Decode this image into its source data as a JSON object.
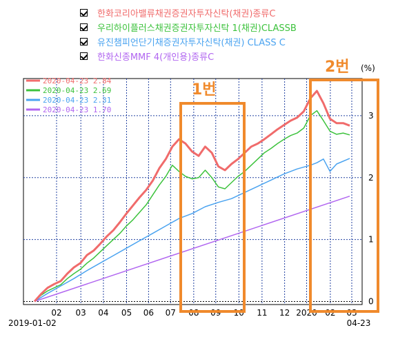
{
  "funds": [
    {
      "label": "한화코리아밸류채권증권자투자신탁(채권)종류C",
      "color": "#f06b6b"
    },
    {
      "label": "우리하이플러스채권증권자투자신탁 1(채권)CLASSB",
      "color": "#3cc23c"
    },
    {
      "label": "유진챔피언단기채증권자투자신탁(채권) CLASS C",
      "color": "#4aa3f0"
    },
    {
      "label": "한화신종MMF 4(개인용)종류C",
      "color": "#b166f0"
    }
  ],
  "chart_data": {
    "type": "line",
    "ylabel": "(%)",
    "ylim": [
      -0.05,
      3.6
    ],
    "x_start_label": "2019-01-02",
    "x_end_label": "04-23",
    "x_ticks": [
      "02",
      "03",
      "04",
      "05",
      "06",
      "07",
      "08",
      "09",
      "10",
      "11",
      "12",
      "2020",
      "02",
      "03",
      "04"
    ],
    "y_ticks": [
      "0",
      "1",
      "2",
      "3"
    ],
    "legend_location": "top-left",
    "series": [
      {
        "legend": "2020-04-23 2.84",
        "color": "#f06b6b",
        "final": 2.84,
        "x": [
          0,
          10,
          20,
          30,
          40,
          50,
          60,
          70,
          80,
          90,
          100,
          110,
          120,
          130,
          140,
          150,
          160,
          170,
          180,
          190,
          200,
          210,
          220,
          230,
          240,
          250,
          260,
          270,
          280,
          290,
          300,
          310,
          320,
          330,
          340,
          350,
          360,
          370,
          380,
          390,
          400,
          410,
          420,
          430,
          440,
          450,
          460,
          470,
          480
        ],
        "y": [
          0.0,
          0.12,
          0.22,
          0.28,
          0.33,
          0.45,
          0.55,
          0.62,
          0.75,
          0.82,
          0.93,
          1.05,
          1.15,
          1.28,
          1.42,
          1.55,
          1.68,
          1.8,
          1.95,
          2.15,
          2.3,
          2.5,
          2.62,
          2.55,
          2.42,
          2.35,
          2.5,
          2.4,
          2.18,
          2.12,
          2.22,
          2.3,
          2.4,
          2.5,
          2.55,
          2.62,
          2.7,
          2.78,
          2.85,
          2.92,
          2.97,
          3.07,
          3.28,
          3.4,
          3.2,
          2.95,
          2.88,
          2.88,
          2.84
        ]
      },
      {
        "legend": "2020-04-23 2.69",
        "color": "#3cc23c",
        "final": 2.69,
        "x": [
          0,
          10,
          20,
          30,
          40,
          50,
          60,
          70,
          80,
          90,
          100,
          110,
          120,
          130,
          140,
          150,
          160,
          170,
          180,
          190,
          200,
          210,
          220,
          230,
          240,
          250,
          260,
          270,
          280,
          290,
          300,
          310,
          320,
          330,
          340,
          350,
          360,
          370,
          380,
          390,
          400,
          410,
          420,
          430,
          440,
          450,
          460,
          470,
          480
        ],
        "y": [
          0.0,
          0.1,
          0.17,
          0.22,
          0.27,
          0.37,
          0.45,
          0.52,
          0.62,
          0.7,
          0.8,
          0.9,
          1.0,
          1.1,
          1.22,
          1.32,
          1.44,
          1.56,
          1.72,
          1.88,
          2.02,
          2.2,
          2.1,
          2.02,
          1.98,
          2.0,
          2.12,
          2.0,
          1.85,
          1.82,
          1.92,
          2.02,
          2.1,
          2.2,
          2.3,
          2.4,
          2.47,
          2.55,
          2.62,
          2.68,
          2.72,
          2.8,
          3.0,
          3.08,
          2.92,
          2.75,
          2.7,
          2.72,
          2.69
        ]
      },
      {
        "legend": "2020-04-23 2.31",
        "color": "#4aa3f0",
        "final": 2.31,
        "x": [
          0,
          20,
          40,
          60,
          80,
          100,
          120,
          140,
          160,
          180,
          200,
          220,
          240,
          260,
          280,
          300,
          320,
          340,
          360,
          380,
          400,
          420,
          430,
          440,
          450,
          460,
          480
        ],
        "y": [
          0.0,
          0.13,
          0.25,
          0.37,
          0.5,
          0.62,
          0.74,
          0.86,
          0.98,
          1.1,
          1.22,
          1.34,
          1.42,
          1.53,
          1.6,
          1.66,
          1.76,
          1.86,
          1.96,
          2.06,
          2.14,
          2.2,
          2.24,
          2.3,
          2.1,
          2.22,
          2.31
        ]
      },
      {
        "legend": "2020-04-23 1.70",
        "color": "#b166f0",
        "final": 1.7,
        "x": [
          0,
          480
        ],
        "y": [
          0.0,
          1.7
        ]
      }
    ],
    "annotations": [
      {
        "label": "1번"
      },
      {
        "label": "2번"
      }
    ]
  }
}
